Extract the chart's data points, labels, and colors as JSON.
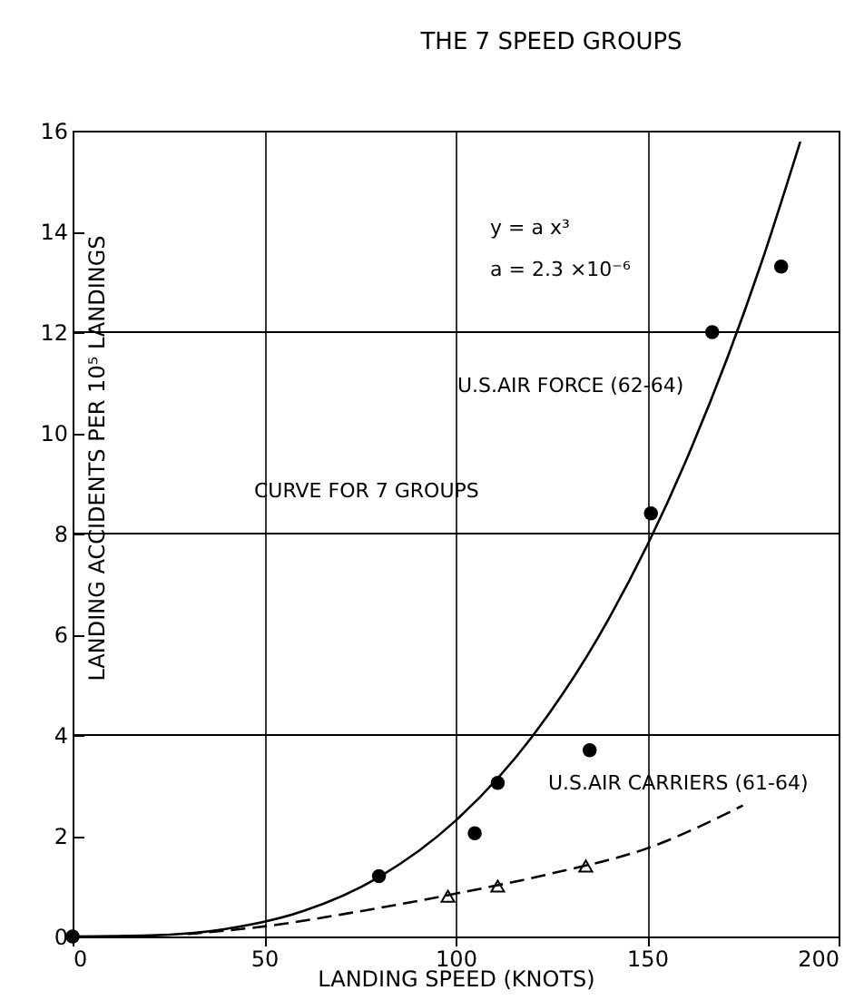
{
  "chart_data": {
    "type": "scatter",
    "title": "THE 7 SPEED GROUPS",
    "xlabel": "LANDING SPEED (KNOTS)",
    "ylabel": "LANDING ACCIDENTS PER 10⁵ LANDINGS",
    "xlim": [
      0,
      200
    ],
    "xticks": [
      0,
      50,
      100,
      150,
      200
    ],
    "ylim": [
      0,
      16
    ],
    "yticks": [
      0,
      2,
      4,
      6,
      8,
      10,
      12,
      14,
      16
    ],
    "grid": "x",
    "ref_lines": [
      {
        "axis": "y",
        "value": 4,
        "color": "#000000"
      },
      {
        "axis": "y",
        "value": 8,
        "color": "#000000"
      },
      {
        "axis": "y",
        "value": 12,
        "color": "#000000"
      }
    ],
    "series": [
      {
        "type": "scatter",
        "marker": "circle",
        "color": "#000000",
        "x": [
          0,
          80,
          105,
          111,
          135,
          151,
          167,
          185
        ],
        "values": [
          0,
          1.2,
          2.05,
          3.05,
          3.7,
          8.4,
          12,
          13.3
        ]
      },
      {
        "type": "scatter",
        "marker": "triangle",
        "color": "#000000",
        "x": [
          98,
          111,
          134
        ],
        "values": [
          0.8,
          1.0,
          1.4
        ]
      },
      {
        "type": "line",
        "line_style": "solid",
        "color": "#000000",
        "x": [
          0,
          20,
          40,
          60,
          80,
          100,
          120,
          140,
          160,
          180,
          190
        ],
        "values": [
          0,
          0.02,
          0.15,
          0.5,
          1.18,
          2.3,
          3.97,
          6.31,
          9.42,
          13.41,
          15.78
        ]
      },
      {
        "type": "line",
        "line_style": "dashed",
        "color": "#000000",
        "x": [
          30,
          50,
          75,
          100,
          125,
          150,
          175
        ],
        "values": [
          0.05,
          0.2,
          0.5,
          0.85,
          1.25,
          1.75,
          2.6
        ]
      }
    ],
    "annotations": [
      "y = a x³",
      "a = 2.3 ×10⁻⁶",
      "U.S.AIR FORCE (62-64)",
      "CURVE FOR 7 GROUPS",
      "U.S.AIR CARRIERS (61-64)"
    ]
  }
}
